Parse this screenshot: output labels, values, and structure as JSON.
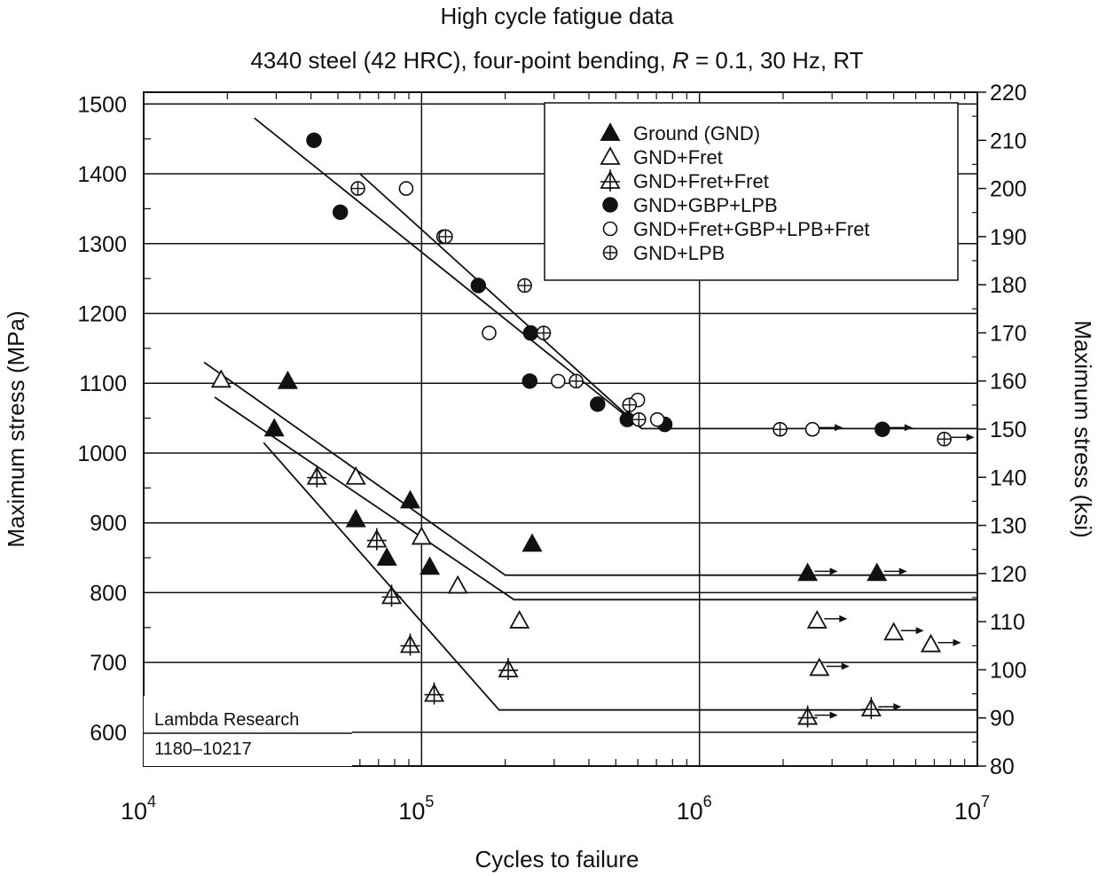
{
  "chart_data": {
    "type": "scatter",
    "title": "High cycle fatigue data",
    "subtitle_parts": [
      "4340 steel (42 HRC), four-point bending, ",
      "R",
      " = 0.1, 30 Hz, RT"
    ],
    "xlabel": "Cycles to failure",
    "ylabel_left": "Maximum stress (MPa)",
    "ylabel_right": "Maximum stress (ksi)",
    "x_scale": "log",
    "xlim": [
      10000,
      10000000
    ],
    "ylim_mpa": [
      551.6,
      1516.9
    ],
    "ylim_ksi": [
      80,
      220
    ],
    "x_ticks": [
      {
        "value": 10000,
        "base": "10",
        "exp": "4"
      },
      {
        "value": 100000,
        "base": "10",
        "exp": "5"
      },
      {
        "value": 1000000,
        "base": "10",
        "exp": "6"
      },
      {
        "value": 10000000,
        "base": "10",
        "exp": "7"
      }
    ],
    "y_ticks_left": [
      "600",
      "700",
      "800",
      "900",
      "1000",
      "1100",
      "1200",
      "1300",
      "1400",
      "1500"
    ],
    "y_ticks_right": [
      "80",
      "90",
      "100",
      "110",
      "120",
      "130",
      "140",
      "150",
      "160",
      "170",
      "180",
      "190",
      "200",
      "210",
      "220"
    ],
    "grid": "major",
    "legend_position": "top-right",
    "series": [
      {
        "name": "Ground (GND)",
        "marker": "filled-triangle",
        "points": [
          [
            29500,
            1035
          ],
          [
            33000,
            1103
          ],
          [
            58000,
            905
          ],
          [
            75000,
            850
          ],
          [
            91000,
            932
          ],
          [
            107000,
            837
          ],
          [
            250000,
            870
          ],
          [
            2450000,
            828,
            "runout"
          ],
          [
            4350000,
            828,
            "runout"
          ]
        ]
      },
      {
        "name": "GND+Fret",
        "marker": "open-triangle",
        "points": [
          [
            19000,
            1105
          ],
          [
            58000,
            966
          ],
          [
            100000,
            880
          ],
          [
            135000,
            810
          ],
          [
            225000,
            760
          ],
          [
            2650000,
            760,
            "runout"
          ],
          [
            2700000,
            692,
            "runout"
          ],
          [
            5000000,
            743,
            "runout"
          ],
          [
            6800000,
            726,
            "runout"
          ]
        ]
      },
      {
        "name": "GND+Fret+Fret",
        "marker": "crossed-triangle",
        "points": [
          [
            42000,
            966
          ],
          [
            69000,
            876
          ],
          [
            78000,
            795
          ],
          [
            91000,
            725
          ],
          [
            111000,
            655
          ],
          [
            205000,
            690
          ],
          [
            2450000,
            622,
            "runout"
          ],
          [
            4150000,
            634,
            "runout"
          ]
        ]
      },
      {
        "name": "GND+GBP+LPB",
        "marker": "filled-circle",
        "points": [
          [
            41000,
            1448
          ],
          [
            51000,
            1345
          ],
          [
            160000,
            1240
          ],
          [
            247000,
            1172
          ],
          [
            245000,
            1103
          ],
          [
            430000,
            1070
          ],
          [
            550000,
            1048
          ],
          [
            750000,
            1041
          ],
          [
            4550000,
            1034,
            "runout"
          ]
        ]
      },
      {
        "name": "GND+Fret+GBP+LPB+Fret",
        "marker": "open-circle",
        "points": [
          [
            88000,
            1379
          ],
          [
            120000,
            1310
          ],
          [
            175000,
            1172
          ],
          [
            310000,
            1103
          ],
          [
            600000,
            1076
          ],
          [
            705000,
            1048
          ],
          [
            2550000,
            1034,
            "runout"
          ]
        ]
      },
      {
        "name": "GND+LPB",
        "marker": "circle-plus",
        "points": [
          [
            59000,
            1379
          ],
          [
            122000,
            1310
          ],
          [
            235000,
            1240
          ],
          [
            275000,
            1172
          ],
          [
            360000,
            1103
          ],
          [
            560000,
            1069
          ],
          [
            605000,
            1048
          ],
          [
            1950000,
            1034
          ],
          [
            7600000,
            1020,
            "runout"
          ]
        ]
      }
    ],
    "fit_lines": [
      [
        [
          25000,
          1480
        ],
        [
          620000,
          1035
        ],
        [
          10000000,
          1035
        ]
      ],
      [
        [
          60000,
          1400
        ],
        [
          620000,
          1035
        ]
      ],
      [
        [
          16500,
          1130
        ],
        [
          200000,
          825
        ],
        [
          10000000,
          825
        ]
      ],
      [
        [
          18000,
          1080
        ],
        [
          215000,
          790
        ],
        [
          10000000,
          790
        ]
      ],
      [
        [
          27000,
          1015
        ],
        [
          190000,
          632
        ],
        [
          10000000,
          632
        ]
      ]
    ],
    "annotation_lines": [
      "Lambda Research",
      "1180–10217"
    ]
  }
}
